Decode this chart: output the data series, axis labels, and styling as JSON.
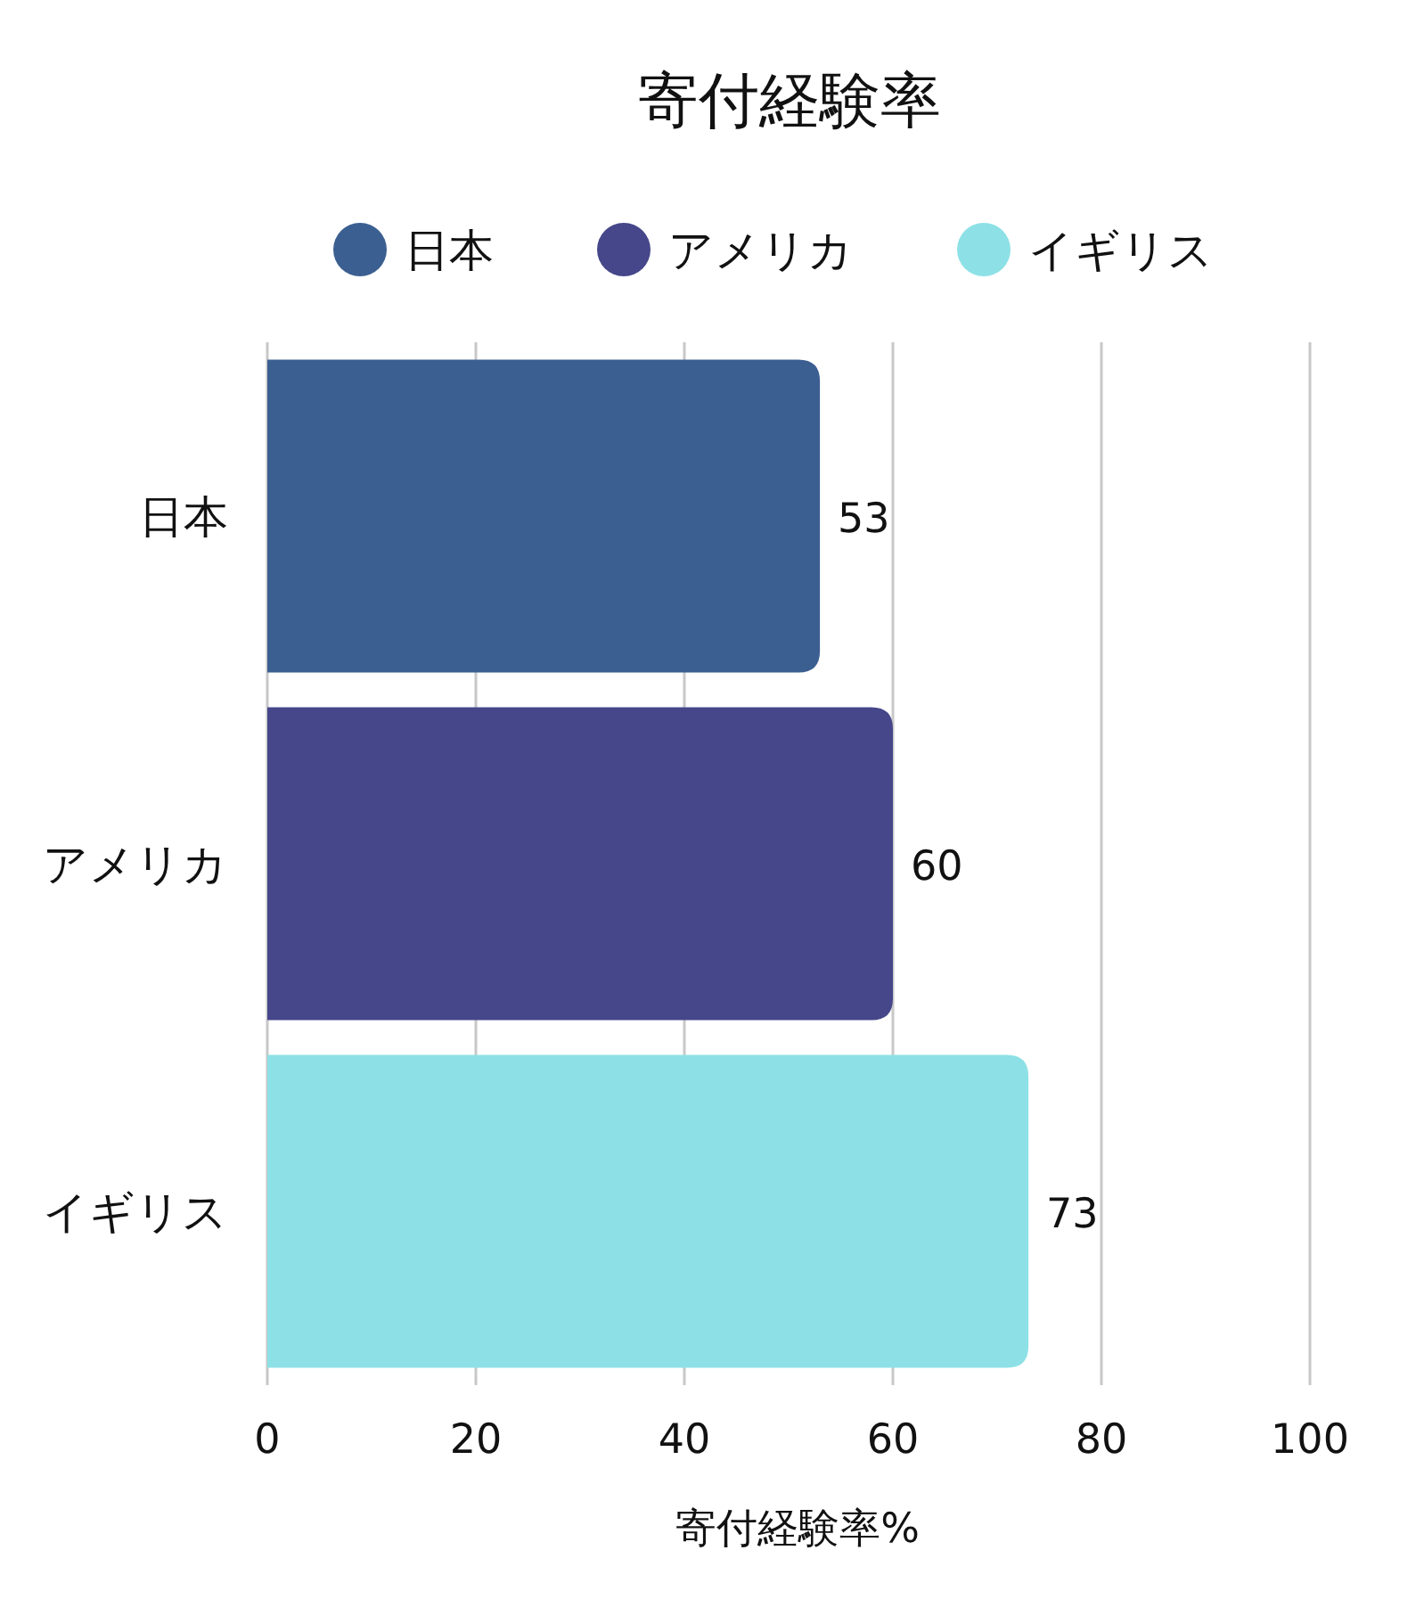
{
  "chart_data": {
    "type": "bar",
    "orientation": "horizontal",
    "title": "寄付経験率",
    "xlabel": "寄付経験率%",
    "categories": [
      "日本",
      "アメリカ",
      "イギリス"
    ],
    "series": [
      {
        "name": "日本",
        "color": "#3b5f91",
        "values": [
          53,
          null,
          null
        ]
      },
      {
        "name": "アメリカ",
        "color": "#46468a",
        "values": [
          null,
          60,
          null
        ]
      },
      {
        "name": "イギリス",
        "color": "#8de1e6",
        "values": [
          null,
          null,
          73
        ]
      }
    ],
    "xlim": [
      0,
      100
    ],
    "xticks": [
      0,
      20,
      40,
      60,
      80,
      100
    ],
    "grid": "x",
    "legend": "top",
    "data_labels": true
  }
}
